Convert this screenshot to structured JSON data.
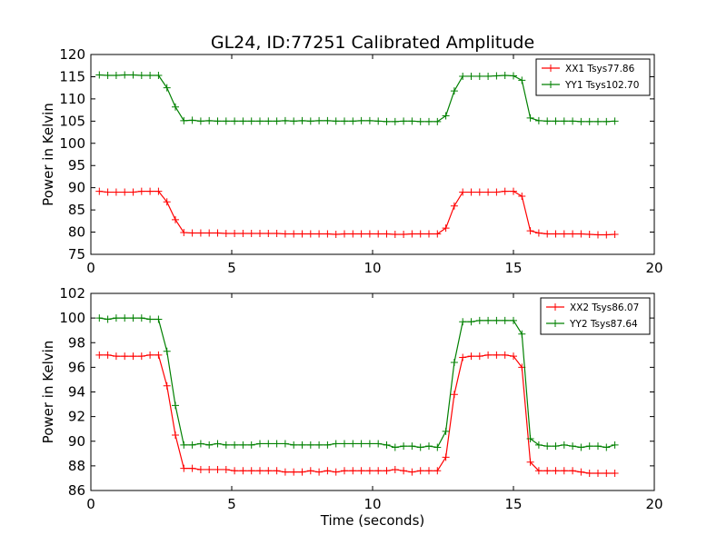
{
  "title": "GL24, ID:77251 Calibrated Amplitude",
  "colors": {
    "red": "#ff0000",
    "green": "#008000"
  },
  "chart_data": [
    {
      "type": "line",
      "ylabel": "Power in Kelvin",
      "xlabel": "",
      "xlim": [
        0,
        20
      ],
      "ylim": [
        75,
        120
      ],
      "xticks": [
        0,
        5,
        10,
        15,
        20
      ],
      "yticks": [
        75,
        80,
        85,
        90,
        95,
        100,
        105,
        110,
        115,
        120
      ],
      "grid": false,
      "legend_position": "top-right",
      "x": [
        0.3,
        0.6,
        0.9,
        1.2,
        1.5,
        1.8,
        2.1,
        2.4,
        2.7,
        3.0,
        3.3,
        3.6,
        3.9,
        4.2,
        4.5,
        4.8,
        5.1,
        5.4,
        5.7,
        6.0,
        6.3,
        6.6,
        6.9,
        7.2,
        7.5,
        7.8,
        8.1,
        8.4,
        8.7,
        9.0,
        9.3,
        9.6,
        9.9,
        10.2,
        10.5,
        10.8,
        11.1,
        11.4,
        11.7,
        12.0,
        12.3,
        12.6,
        12.9,
        13.2,
        13.5,
        13.8,
        14.1,
        14.4,
        14.7,
        15.0,
        15.3,
        15.6,
        15.9,
        16.2,
        16.5,
        16.8,
        17.1,
        17.4,
        17.7,
        18.0,
        18.3,
        18.6
      ],
      "series": [
        {
          "name": "XX1 Tsys77.86",
          "color": "#ff0000",
          "values": [
            89.2,
            89.0,
            89.0,
            89.0,
            89.0,
            89.2,
            89.2,
            89.2,
            86.8,
            82.8,
            79.9,
            79.8,
            79.8,
            79.8,
            79.8,
            79.7,
            79.7,
            79.7,
            79.7,
            79.7,
            79.7,
            79.7,
            79.6,
            79.6,
            79.6,
            79.6,
            79.6,
            79.6,
            79.5,
            79.6,
            79.6,
            79.6,
            79.6,
            79.6,
            79.6,
            79.5,
            79.5,
            79.6,
            79.6,
            79.6,
            79.6,
            80.9,
            85.9,
            89.0,
            89.0,
            89.0,
            89.0,
            89.0,
            89.2,
            89.2,
            88.1,
            80.3,
            79.8,
            79.6,
            79.6,
            79.6,
            79.6,
            79.6,
            79.5,
            79.4,
            79.4,
            79.5
          ]
        },
        {
          "name": "YY1 Tsys102.70",
          "color": "#008000",
          "values": [
            115.4,
            115.3,
            115.3,
            115.4,
            115.4,
            115.3,
            115.3,
            115.3,
            112.5,
            108.2,
            105.1,
            105.2,
            105.0,
            105.1,
            105.0,
            105.0,
            105.0,
            105.0,
            105.0,
            105.0,
            105.0,
            105.0,
            105.1,
            105.0,
            105.1,
            105.0,
            105.1,
            105.1,
            105.0,
            105.0,
            105.0,
            105.1,
            105.1,
            105.0,
            104.9,
            104.9,
            105.0,
            105.0,
            104.9,
            104.9,
            104.9,
            106.2,
            111.8,
            115.1,
            115.1,
            115.1,
            115.1,
            115.2,
            115.3,
            115.2,
            114.2,
            105.7,
            105.1,
            105.0,
            105.0,
            105.0,
            105.0,
            104.9,
            104.9,
            104.9,
            104.9,
            105.0
          ]
        }
      ]
    },
    {
      "type": "line",
      "ylabel": "Power in Kelvin",
      "xlabel": "Time (seconds)",
      "xlim": [
        0,
        20
      ],
      "ylim": [
        86,
        102
      ],
      "xticks": [
        0,
        5,
        10,
        15,
        20
      ],
      "yticks": [
        86,
        88,
        90,
        92,
        94,
        96,
        98,
        100,
        102
      ],
      "grid": false,
      "legend_position": "top-right",
      "x": [
        0.3,
        0.6,
        0.9,
        1.2,
        1.5,
        1.8,
        2.1,
        2.4,
        2.7,
        3.0,
        3.3,
        3.6,
        3.9,
        4.2,
        4.5,
        4.8,
        5.1,
        5.4,
        5.7,
        6.0,
        6.3,
        6.6,
        6.9,
        7.2,
        7.5,
        7.8,
        8.1,
        8.4,
        8.7,
        9.0,
        9.3,
        9.6,
        9.9,
        10.2,
        10.5,
        10.8,
        11.1,
        11.4,
        11.7,
        12.0,
        12.3,
        12.6,
        12.9,
        13.2,
        13.5,
        13.8,
        14.1,
        14.4,
        14.7,
        15.0,
        15.3,
        15.6,
        15.9,
        16.2,
        16.5,
        16.8,
        17.1,
        17.4,
        17.7,
        18.0,
        18.3,
        18.6
      ],
      "series": [
        {
          "name": "XX2 Tsys86.07",
          "color": "#ff0000",
          "values": [
            97.0,
            97.0,
            96.9,
            96.9,
            96.9,
            96.9,
            97.0,
            97.0,
            94.5,
            90.5,
            87.8,
            87.8,
            87.7,
            87.7,
            87.7,
            87.7,
            87.6,
            87.6,
            87.6,
            87.6,
            87.6,
            87.6,
            87.5,
            87.5,
            87.5,
            87.6,
            87.5,
            87.6,
            87.5,
            87.6,
            87.6,
            87.6,
            87.6,
            87.6,
            87.6,
            87.7,
            87.6,
            87.5,
            87.6,
            87.6,
            87.6,
            88.7,
            93.8,
            96.8,
            96.9,
            96.9,
            97.0,
            97.0,
            97.0,
            96.9,
            96.0,
            88.3,
            87.6,
            87.6,
            87.6,
            87.6,
            87.6,
            87.5,
            87.4,
            87.4,
            87.4,
            87.4
          ]
        },
        {
          "name": "YY2 Tsys87.64",
          "color": "#008000",
          "values": [
            100.0,
            99.9,
            100.0,
            100.0,
            100.0,
            100.0,
            99.9,
            99.9,
            97.3,
            92.9,
            89.7,
            89.7,
            89.8,
            89.7,
            89.8,
            89.7,
            89.7,
            89.7,
            89.7,
            89.8,
            89.8,
            89.8,
            89.8,
            89.7,
            89.7,
            89.7,
            89.7,
            89.7,
            89.8,
            89.8,
            89.8,
            89.8,
            89.8,
            89.8,
            89.7,
            89.5,
            89.6,
            89.6,
            89.5,
            89.6,
            89.5,
            90.8,
            96.4,
            99.7,
            99.7,
            99.8,
            99.8,
            99.8,
            99.8,
            99.8,
            98.7,
            90.2,
            89.7,
            89.6,
            89.6,
            89.7,
            89.6,
            89.5,
            89.6,
            89.6,
            89.5,
            89.7
          ]
        }
      ]
    }
  ]
}
